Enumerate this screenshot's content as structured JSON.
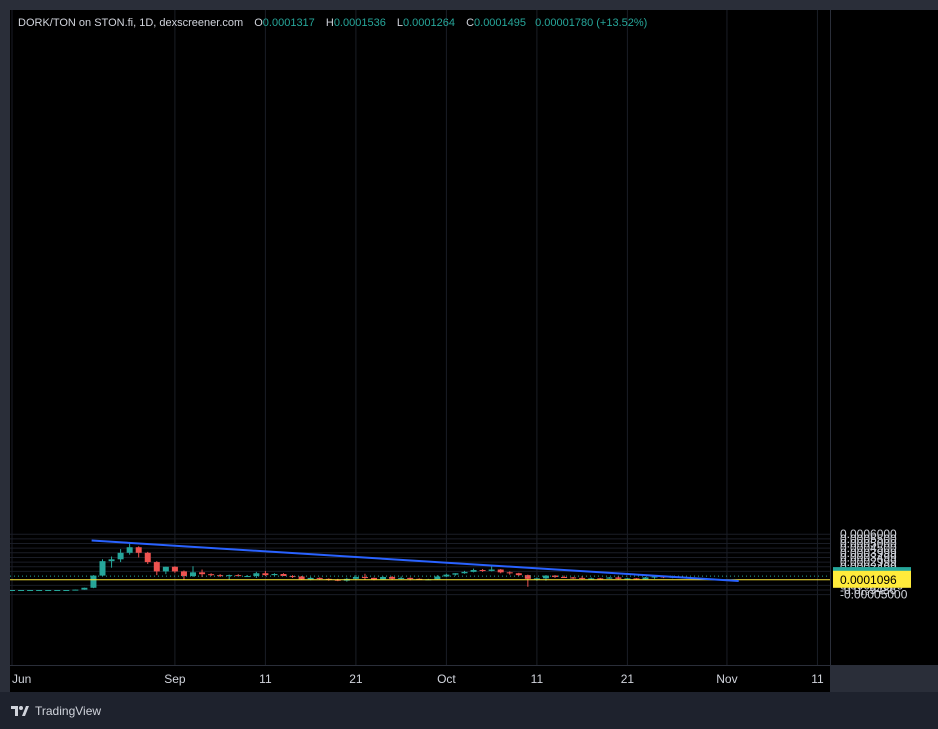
{
  "header": {
    "symbol_line": "DORK/TON on STON.fi, 1D, dexscreener.com",
    "open_label": "O",
    "open": "0.0001317",
    "high_label": "H",
    "high": "0.0001536",
    "low_label": "L",
    "low": "0.0001264",
    "close_label": "C",
    "close": "0.0001495",
    "change": "0.00001780 (+13.52%)"
  },
  "footer": {
    "brand": "TradingView"
  },
  "colors": {
    "up": "#26a69a",
    "down": "#ef5350",
    "trendline": "#2962ff",
    "hline": "#ffeb3b",
    "background": "#000000"
  },
  "chart_data": {
    "type": "candlestick",
    "price_ticks": [
      {
        "value": 0.0006,
        "label": "0.0006000"
      },
      {
        "value": 0.00055,
        "label": "0.0005500"
      },
      {
        "value": 0.0005,
        "label": "0.0005000"
      },
      {
        "value": 0.00045,
        "label": "0.0004500"
      },
      {
        "value": 0.0004,
        "label": "0.0003999"
      },
      {
        "value": 0.00035,
        "label": "0.0003499"
      },
      {
        "value": 0.0003,
        "label": "0.0002999"
      },
      {
        "value": 0.00025,
        "label": "0.0002499"
      },
      {
        "value": 0.0002,
        "label": "0.0001999"
      },
      {
        "value": 5e-05,
        "label": "0.00004999"
      },
      {
        "value": 0.0,
        "label": "-0.0₁₉9486"
      },
      {
        "value": -5e-05,
        "label": "-0.00005000"
      }
    ],
    "time_ticks": [
      {
        "index": 0,
        "label": "Jun"
      },
      {
        "index": 18,
        "label": "Sep"
      },
      {
        "index": 28,
        "label": "11"
      },
      {
        "index": 38,
        "label": "21"
      },
      {
        "index": 48,
        "label": "Oct"
      },
      {
        "index": 58,
        "label": "11"
      },
      {
        "index": 68,
        "label": "21"
      },
      {
        "index": 79,
        "label": "Nov"
      },
      {
        "index": 89,
        "label": "11"
      }
    ],
    "last_price": {
      "value": 0.0001495,
      "label": "0.0001495",
      "color": "#26a69a"
    },
    "horizontal_line": {
      "value": 0.0001096,
      "label": "0.0001096",
      "color": "#ffeb3b"
    },
    "hidden_label_behind": "0.00009999",
    "trendline": {
      "start": {
        "index": 8.8,
        "value": 0.000532
      },
      "end": {
        "index": 80.3,
        "value": 9.7e-05
      }
    },
    "candles": [
      {
        "i": 0,
        "o": 0.0,
        "h": 0.0,
        "l": 0.0,
        "c": 0.0
      },
      {
        "i": 1,
        "o": 0.0,
        "h": 0.0,
        "l": 0.0,
        "c": 0.0
      },
      {
        "i": 2,
        "o": 0.0,
        "h": 0.0,
        "l": 0.0,
        "c": 0.0
      },
      {
        "i": 3,
        "o": 0.0,
        "h": 0.0,
        "l": 0.0,
        "c": 0.0
      },
      {
        "i": 4,
        "o": 0.0,
        "h": 0.0,
        "l": 0.0,
        "c": 0.0
      },
      {
        "i": 5,
        "o": 0.0,
        "h": 0.0,
        "l": 0.0,
        "c": 0.0
      },
      {
        "i": 6,
        "o": 0.0,
        "h": 0.0,
        "l": 0.0,
        "c": 0.0
      },
      {
        "i": 7,
        "o": 0.0,
        "h": 5e-06,
        "l": -2e-06,
        "c": 4e-06
      },
      {
        "i": 8,
        "o": 4e-06,
        "h": 2.5e-05,
        "l": 2e-06,
        "c": 2.4e-05
      },
      {
        "i": 9,
        "o": 2.4e-05,
        "h": 0.00016,
        "l": 2e-05,
        "c": 0.000155
      },
      {
        "i": 10,
        "o": 0.000155,
        "h": 0.00033,
        "l": 0.00015,
        "c": 0.00031
      },
      {
        "i": 11,
        "o": 0.00031,
        "h": 0.00036,
        "l": 0.00024,
        "c": 0.00033
      },
      {
        "i": 12,
        "o": 0.00033,
        "h": 0.00044,
        "l": 0.0003,
        "c": 0.0004
      },
      {
        "i": 13,
        "o": 0.0004,
        "h": 0.000505,
        "l": 0.00038,
        "c": 0.00046
      },
      {
        "i": 14,
        "o": 0.00046,
        "h": 0.00047,
        "l": 0.00035,
        "c": 0.0004
      },
      {
        "i": 15,
        "o": 0.0004,
        "h": 0.00041,
        "l": 0.00028,
        "c": 0.0003
      },
      {
        "i": 16,
        "o": 0.0003,
        "h": 0.00031,
        "l": 0.00016,
        "c": 0.0002
      },
      {
        "i": 17,
        "o": 0.0002,
        "h": 0.00025,
        "l": 0.00017,
        "c": 0.00025
      },
      {
        "i": 18,
        "o": 0.00025,
        "h": 0.000255,
        "l": 0.000185,
        "c": 0.0002
      },
      {
        "i": 19,
        "o": 0.0002,
        "h": 0.00021,
        "l": 0.00011,
        "c": 0.00015
      },
      {
        "i": 20,
        "o": 0.00015,
        "h": 0.000255,
        "l": 0.00014,
        "c": 0.00019
      },
      {
        "i": 21,
        "o": 0.00019,
        "h": 0.00022,
        "l": 0.00014,
        "c": 0.00017
      },
      {
        "i": 22,
        "o": 0.00017,
        "h": 0.00018,
        "l": 0.00015,
        "c": 0.00016
      },
      {
        "i": 23,
        "o": 0.00016,
        "h": 0.00017,
        "l": 0.00014,
        "c": 0.00015
      },
      {
        "i": 24,
        "o": 0.00015,
        "h": 0.000165,
        "l": 0.00011,
        "c": 0.00016
      },
      {
        "i": 25,
        "o": 0.00016,
        "h": 0.00017,
        "l": 0.000145,
        "c": 0.00015
      },
      {
        "i": 26,
        "o": 0.00015,
        "h": 0.00016,
        "l": 0.00014,
        "c": 0.00015
      },
      {
        "i": 27,
        "o": 0.00015,
        "h": 0.000195,
        "l": 0.00013,
        "c": 0.00018
      },
      {
        "i": 28,
        "o": 0.00018,
        "h": 0.000205,
        "l": 0.00015,
        "c": 0.00016
      },
      {
        "i": 29,
        "o": 0.00016,
        "h": 0.00018,
        "l": 0.000155,
        "c": 0.000172
      },
      {
        "i": 30,
        "o": 0.000172,
        "h": 0.00018,
        "l": 0.00015,
        "c": 0.00015
      },
      {
        "i": 31,
        "o": 0.00015,
        "h": 0.00016,
        "l": 0.00013,
        "c": 0.000145
      },
      {
        "i": 32,
        "o": 0.000145,
        "h": 0.00015,
        "l": 0.00011,
        "c": 0.000115
      },
      {
        "i": 33,
        "o": 0.000115,
        "h": 0.00014,
        "l": 0.000105,
        "c": 0.00013
      },
      {
        "i": 34,
        "o": 0.00013,
        "h": 0.000135,
        "l": 0.00011,
        "c": 0.00012
      },
      {
        "i": 35,
        "o": 0.00012,
        "h": 0.000125,
        "l": 0.0001,
        "c": 0.00011
      },
      {
        "i": 36,
        "o": 0.00011,
        "h": 0.00012,
        "l": 9.5e-05,
        "c": 0.0001
      },
      {
        "i": 37,
        "o": 0.0001,
        "h": 0.000132,
        "l": 9e-05,
        "c": 0.00012
      },
      {
        "i": 38,
        "o": 0.00012,
        "h": 0.00016,
        "l": 0.00011,
        "c": 0.00014
      },
      {
        "i": 39,
        "o": 0.00014,
        "h": 0.000175,
        "l": 0.00011,
        "c": 0.00013
      },
      {
        "i": 40,
        "o": 0.00013,
        "h": 0.000135,
        "l": 0.000105,
        "c": 0.000115
      },
      {
        "i": 41,
        "o": 0.000115,
        "h": 0.000145,
        "l": 0.00011,
        "c": 0.00014
      },
      {
        "i": 42,
        "o": 0.00014,
        "h": 0.00015,
        "l": 0.00011,
        "c": 0.00012
      },
      {
        "i": 43,
        "o": 0.00012,
        "h": 0.000145,
        "l": 0.000115,
        "c": 0.00013
      },
      {
        "i": 44,
        "o": 0.00013,
        "h": 0.000135,
        "l": 0.000105,
        "c": 0.00012
      },
      {
        "i": 45,
        "o": 0.00012,
        "h": 0.000125,
        "l": 0.00011,
        "c": 0.000115
      },
      {
        "i": 46,
        "o": 0.000115,
        "h": 0.00012,
        "l": 0.00011,
        "c": 0.000115
      },
      {
        "i": 47,
        "o": 0.000115,
        "h": 0.00016,
        "l": 0.00011,
        "c": 0.000145
      },
      {
        "i": 48,
        "o": 0.000145,
        "h": 0.000175,
        "l": 0.00014,
        "c": 0.000165
      },
      {
        "i": 49,
        "o": 0.000165,
        "h": 0.00018,
        "l": 0.000155,
        "c": 0.00018
      },
      {
        "i": 50,
        "o": 0.00018,
        "h": 0.000205,
        "l": 0.000175,
        "c": 0.000195
      },
      {
        "i": 51,
        "o": 0.000195,
        "h": 0.00023,
        "l": 0.00019,
        "c": 0.000215
      },
      {
        "i": 52,
        "o": 0.000215,
        "h": 0.000225,
        "l": 0.000195,
        "c": 0.000205
      },
      {
        "i": 53,
        "o": 0.000205,
        "h": 0.000258,
        "l": 0.0002,
        "c": 0.00022
      },
      {
        "i": 54,
        "o": 0.00022,
        "h": 0.000225,
        "l": 0.00018,
        "c": 0.00019
      },
      {
        "i": 55,
        "o": 0.00019,
        "h": 0.0002,
        "l": 0.000165,
        "c": 0.00018
      },
      {
        "i": 56,
        "o": 0.00018,
        "h": 0.000185,
        "l": 0.00015,
        "c": 0.00016
      },
      {
        "i": 57,
        "o": 0.00016,
        "h": 0.000165,
        "l": 3.5e-05,
        "c": 0.00012
      },
      {
        "i": 58,
        "o": 0.00012,
        "h": 0.000135,
        "l": 0.0001,
        "c": 0.000125
      },
      {
        "i": 59,
        "o": 0.000125,
        "h": 0.00016,
        "l": 0.0001,
        "c": 0.000155
      },
      {
        "i": 60,
        "o": 0.000155,
        "h": 0.00016,
        "l": 0.00013,
        "c": 0.00014
      },
      {
        "i": 61,
        "o": 0.00014,
        "h": 0.000155,
        "l": 0.00013,
        "c": 0.000135
      },
      {
        "i": 62,
        "o": 0.000135,
        "h": 0.00014,
        "l": 0.00012,
        "c": 0.00013
      },
      {
        "i": 63,
        "o": 0.00013,
        "h": 0.00015,
        "l": 0.000115,
        "c": 0.00012
      },
      {
        "i": 64,
        "o": 0.00012,
        "h": 0.000135,
        "l": 0.000115,
        "c": 0.000125
      },
      {
        "i": 65,
        "o": 0.000125,
        "h": 0.00013,
        "l": 0.00012,
        "c": 0.000122
      },
      {
        "i": 66,
        "o": 0.000122,
        "h": 0.00014,
        "l": 0.00012,
        "c": 0.000135
      },
      {
        "i": 67,
        "o": 0.000135,
        "h": 0.00015,
        "l": 0.000115,
        "c": 0.00012
      },
      {
        "i": 68,
        "o": 0.00012,
        "h": 0.00013,
        "l": 0.000115,
        "c": 0.000125
      },
      {
        "i": 69,
        "o": 0.000125,
        "h": 0.000128,
        "l": 0.000112,
        "c": 0.000115
      },
      {
        "i": 70,
        "o": 0.000115,
        "h": 0.00014,
        "l": 0.000112,
        "c": 0.000135
      },
      {
        "i": 71,
        "o": 0.000135,
        "h": 0.000145,
        "l": 0.00012,
        "c": 0.000145
      },
      {
        "i": 72,
        "o": 0.000145,
        "h": 0.00015,
        "l": 0.000128,
        "c": 0.000135
      },
      {
        "i": 73,
        "o": 0.0001317,
        "h": 0.0001536,
        "l": 0.0001264,
        "c": 0.0001495
      }
    ]
  }
}
